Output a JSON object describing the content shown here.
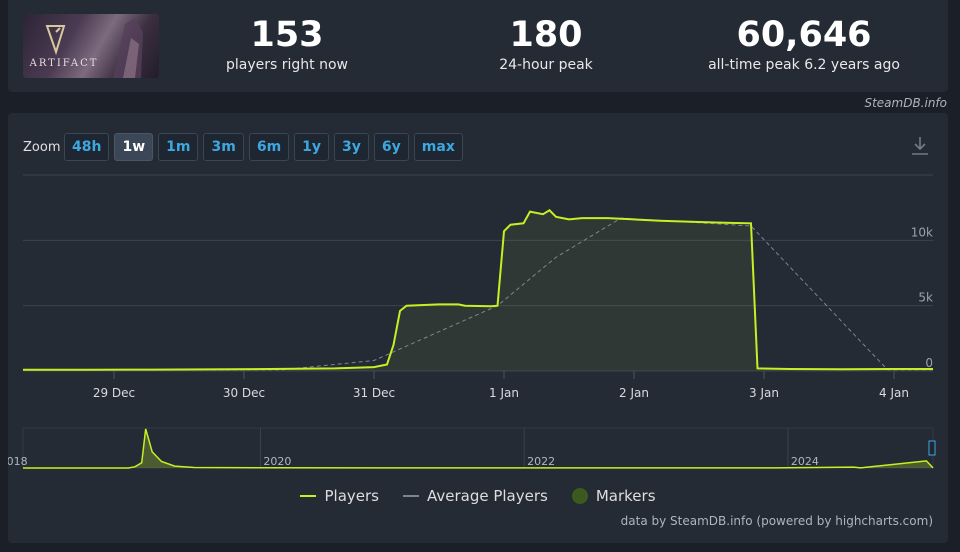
{
  "header": {
    "logo_alt": "Artifact",
    "logo_text": "ARTIFACT",
    "stats": [
      {
        "value": "153",
        "label": "players right now"
      },
      {
        "value": "180",
        "label": "24-hour peak"
      },
      {
        "value": "60,646",
        "label": "all-time peak 6.2 years ago"
      }
    ],
    "credit": "SteamDB.info"
  },
  "zoom": {
    "label": "Zoom",
    "options": [
      "48h",
      "1w",
      "1m",
      "3m",
      "6m",
      "1y",
      "3y",
      "6y",
      "max"
    ],
    "active": "1w"
  },
  "colors": {
    "players": "#c6f024",
    "average": "#7d858f",
    "markers": "#3d5a1e",
    "accent": "#3fa7e0"
  },
  "chart_data": {
    "type": "line",
    "x_tick_labels": [
      "29 Dec",
      "30 Dec",
      "31 Dec",
      "1 Jan",
      "2 Jan",
      "3 Jan",
      "4 Jan"
    ],
    "y_tick_labels": [
      "0",
      "5k",
      "10k"
    ],
    "xlim": [
      28.3,
      35.3
    ],
    "ylim": [
      0,
      15000
    ],
    "x_axis_note": "x values are day numbers where 29 = 29 Dec and 32 = 1 Jan",
    "series": [
      {
        "name": "Players",
        "points": [
          [
            28.3,
            100
          ],
          [
            28.8,
            100
          ],
          [
            29.3,
            110
          ],
          [
            29.7,
            120
          ],
          [
            30.2,
            150
          ],
          [
            30.7,
            200
          ],
          [
            31.0,
            300
          ],
          [
            31.1,
            500
          ],
          [
            31.15,
            2000
          ],
          [
            31.2,
            4600
          ],
          [
            31.25,
            5000
          ],
          [
            31.5,
            5100
          ],
          [
            31.65,
            5100
          ],
          [
            31.7,
            5000
          ],
          [
            31.9,
            4950
          ],
          [
            31.95,
            5000
          ],
          [
            32.0,
            10700
          ],
          [
            32.05,
            11200
          ],
          [
            32.15,
            11300
          ],
          [
            32.2,
            12200
          ],
          [
            32.3,
            12000
          ],
          [
            32.35,
            12300
          ],
          [
            32.4,
            11800
          ],
          [
            32.5,
            11600
          ],
          [
            32.6,
            11700
          ],
          [
            32.8,
            11700
          ],
          [
            33.0,
            11600
          ],
          [
            33.2,
            11500
          ],
          [
            33.5,
            11400
          ],
          [
            33.7,
            11350
          ],
          [
            33.9,
            11300
          ],
          [
            33.95,
            200
          ],
          [
            34.2,
            150
          ],
          [
            34.6,
            130
          ],
          [
            35.0,
            150
          ],
          [
            35.3,
            150
          ]
        ]
      },
      {
        "name": "Average Players",
        "points": [
          [
            28.3,
            100
          ],
          [
            30.3,
            100
          ],
          [
            31.0,
            800
          ],
          [
            31.95,
            5000
          ],
          [
            32.4,
            8700
          ],
          [
            32.9,
            11700
          ],
          [
            33.4,
            11400
          ],
          [
            33.9,
            11100
          ],
          [
            34.95,
            100
          ],
          [
            35.3,
            100
          ]
        ]
      }
    ],
    "navigator": {
      "x_tick_labels": [
        "2018",
        "2020",
        "2022",
        "2024"
      ],
      "xlim": [
        2018.2,
        2025.1
      ],
      "points": [
        [
          2018.2,
          0
        ],
        [
          2018.8,
          0
        ],
        [
          2019.0,
          0
        ],
        [
          2019.05,
          2000
        ],
        [
          2019.1,
          8000
        ],
        [
          2019.13,
          60646
        ],
        [
          2019.18,
          25000
        ],
        [
          2019.25,
          10000
        ],
        [
          2019.35,
          3000
        ],
        [
          2019.5,
          800
        ],
        [
          2020.0,
          300
        ],
        [
          2021.0,
          200
        ],
        [
          2022.0,
          150
        ],
        [
          2023.0,
          150
        ],
        [
          2023.9,
          180
        ],
        [
          2024.5,
          1400
        ],
        [
          2024.55,
          200
        ],
        [
          2025.05,
          11000
        ],
        [
          2025.1,
          150
        ]
      ]
    }
  },
  "legend": {
    "players": "Players",
    "average": "Average Players",
    "markers": "Markers"
  },
  "footer": {
    "credit": "data by SteamDB.info (powered by highcharts.com)"
  }
}
